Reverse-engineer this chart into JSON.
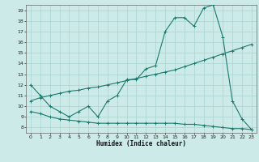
{
  "xlabel": "Humidex (Indice chaleur)",
  "bg_color": "#cceae8",
  "grid_color": "#aad4d2",
  "line_color": "#1a7a6e",
  "xlim": [
    -0.5,
    23.5
  ],
  "ylim": [
    7.5,
    19.5
  ],
  "xticks": [
    0,
    1,
    2,
    3,
    4,
    5,
    6,
    7,
    8,
    9,
    10,
    11,
    12,
    13,
    14,
    15,
    16,
    17,
    18,
    19,
    20,
    21,
    22,
    23
  ],
  "yticks": [
    8,
    9,
    10,
    11,
    12,
    13,
    14,
    15,
    16,
    17,
    18,
    19
  ],
  "line1_x": [
    0,
    1,
    2,
    3,
    4,
    5,
    6,
    7,
    8,
    9,
    10,
    11,
    12,
    13,
    14,
    15,
    16,
    17,
    18,
    19,
    20,
    21,
    22,
    23
  ],
  "line1_y": [
    12,
    11,
    10,
    9.5,
    9,
    9.5,
    10,
    9,
    10.5,
    11,
    12.5,
    12.5,
    13.5,
    13.8,
    17,
    18.3,
    18.3,
    17.5,
    19.2,
    19.5,
    16.5,
    10.5,
    8.8,
    7.8
  ],
  "line2_x": [
    0,
    1,
    2,
    3,
    4,
    5,
    6,
    7,
    8,
    9,
    10,
    11,
    12,
    13,
    14,
    15,
    16,
    17,
    18,
    19,
    20,
    21,
    22,
    23
  ],
  "line2_y": [
    10.5,
    10.8,
    11.0,
    11.2,
    11.4,
    11.5,
    11.7,
    11.8,
    12.0,
    12.2,
    12.4,
    12.6,
    12.8,
    13.0,
    13.2,
    13.4,
    13.7,
    14.0,
    14.3,
    14.6,
    14.9,
    15.2,
    15.5,
    15.8
  ],
  "line3_x": [
    0,
    1,
    2,
    3,
    4,
    5,
    6,
    7,
    8,
    9,
    10,
    11,
    12,
    13,
    14,
    15,
    16,
    17,
    18,
    19,
    20,
    21,
    22,
    23
  ],
  "line3_y": [
    9.5,
    9.3,
    9.0,
    8.8,
    8.7,
    8.6,
    8.5,
    8.4,
    8.4,
    8.4,
    8.4,
    8.4,
    8.4,
    8.4,
    8.4,
    8.4,
    8.3,
    8.3,
    8.2,
    8.1,
    8.0,
    7.9,
    7.9,
    7.8
  ]
}
